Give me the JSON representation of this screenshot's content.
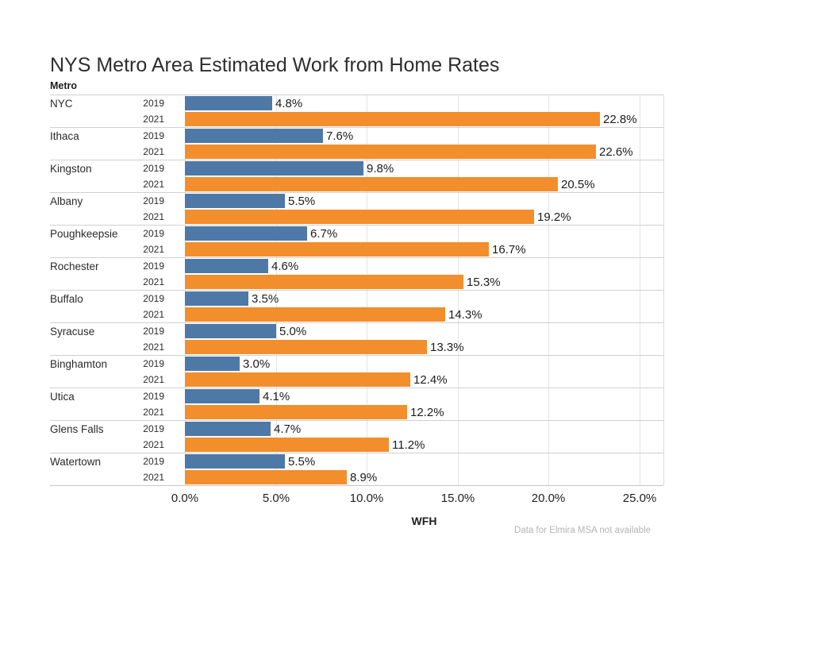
{
  "chart_data": {
    "type": "bar",
    "orientation": "horizontal",
    "title": "NYS Metro Area Estimated Work from Home Rates",
    "row_header": "Metro",
    "xlabel": "WFH",
    "caption": "Data for Elmira MSA not available",
    "categories": [
      "NYC",
      "Ithaca",
      "Kingston",
      "Albany",
      "Poughkeepsie",
      "Rochester",
      "Buffalo",
      "Syracuse",
      "Binghamton",
      "Utica",
      "Glens Falls",
      "Watertown"
    ],
    "series": [
      {
        "name": "2019",
        "color": "#4e79a7",
        "values": [
          4.8,
          7.6,
          9.8,
          5.5,
          6.7,
          4.6,
          3.5,
          5.0,
          3.0,
          4.1,
          4.7,
          5.5
        ]
      },
      {
        "name": "2021",
        "color": "#f28e2b",
        "values": [
          22.8,
          22.6,
          20.5,
          19.2,
          16.7,
          15.3,
          14.3,
          13.3,
          12.4,
          12.2,
          11.2,
          8.9
        ]
      }
    ],
    "value_labels": {
      "2019": [
        "4.8%",
        "7.6%",
        "9.8%",
        "5.5%",
        "6.7%",
        "4.6%",
        "3.5%",
        "5.0%",
        "3.0%",
        "4.1%",
        "4.7%",
        "5.5%"
      ],
      "2021": [
        "22.8%",
        "22.6%",
        "20.5%",
        "19.2%",
        "16.7%",
        "15.3%",
        "14.3%",
        "13.3%",
        "12.4%",
        "12.2%",
        "11.2%",
        "8.9%"
      ]
    },
    "x_ticks": [
      0,
      5,
      10,
      15,
      20,
      25
    ],
    "x_tick_labels": [
      "0.0%",
      "5.0%",
      "10.0%",
      "15.0%",
      "20.0%",
      "25.0%"
    ],
    "xlim": [
      0,
      26.3
    ],
    "grid": "vertical-gridlines",
    "legend": "none",
    "background": "#ffffff"
  }
}
